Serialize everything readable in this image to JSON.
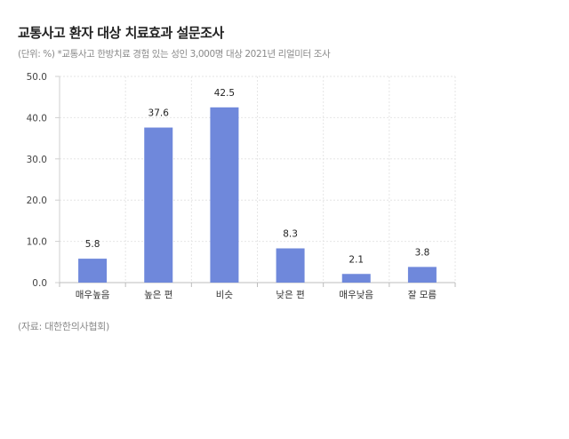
{
  "title": "교통사고 환자 대상 치료효과 설문조사",
  "subtitle": "(단위: %) *교통사고 한방치료 경험 있는 성인 3,000명 대상 2021년 리얼미터 조사",
  "source": "(자료: 대한한의사협회)",
  "chart_data": {
    "type": "bar",
    "categories": [
      "매우높음",
      "높은 편",
      "비슷",
      "낮은 편",
      "매우낮음",
      "잘 모름"
    ],
    "values": [
      5.8,
      37.6,
      42.5,
      8.3,
      2.1,
      3.8
    ],
    "ylim": [
      0,
      50
    ],
    "yticks": [
      "0.0",
      "10.0",
      "20.0",
      "30.0",
      "40.0",
      "50.0"
    ],
    "grid": true,
    "bar_color": "#6f88db"
  }
}
